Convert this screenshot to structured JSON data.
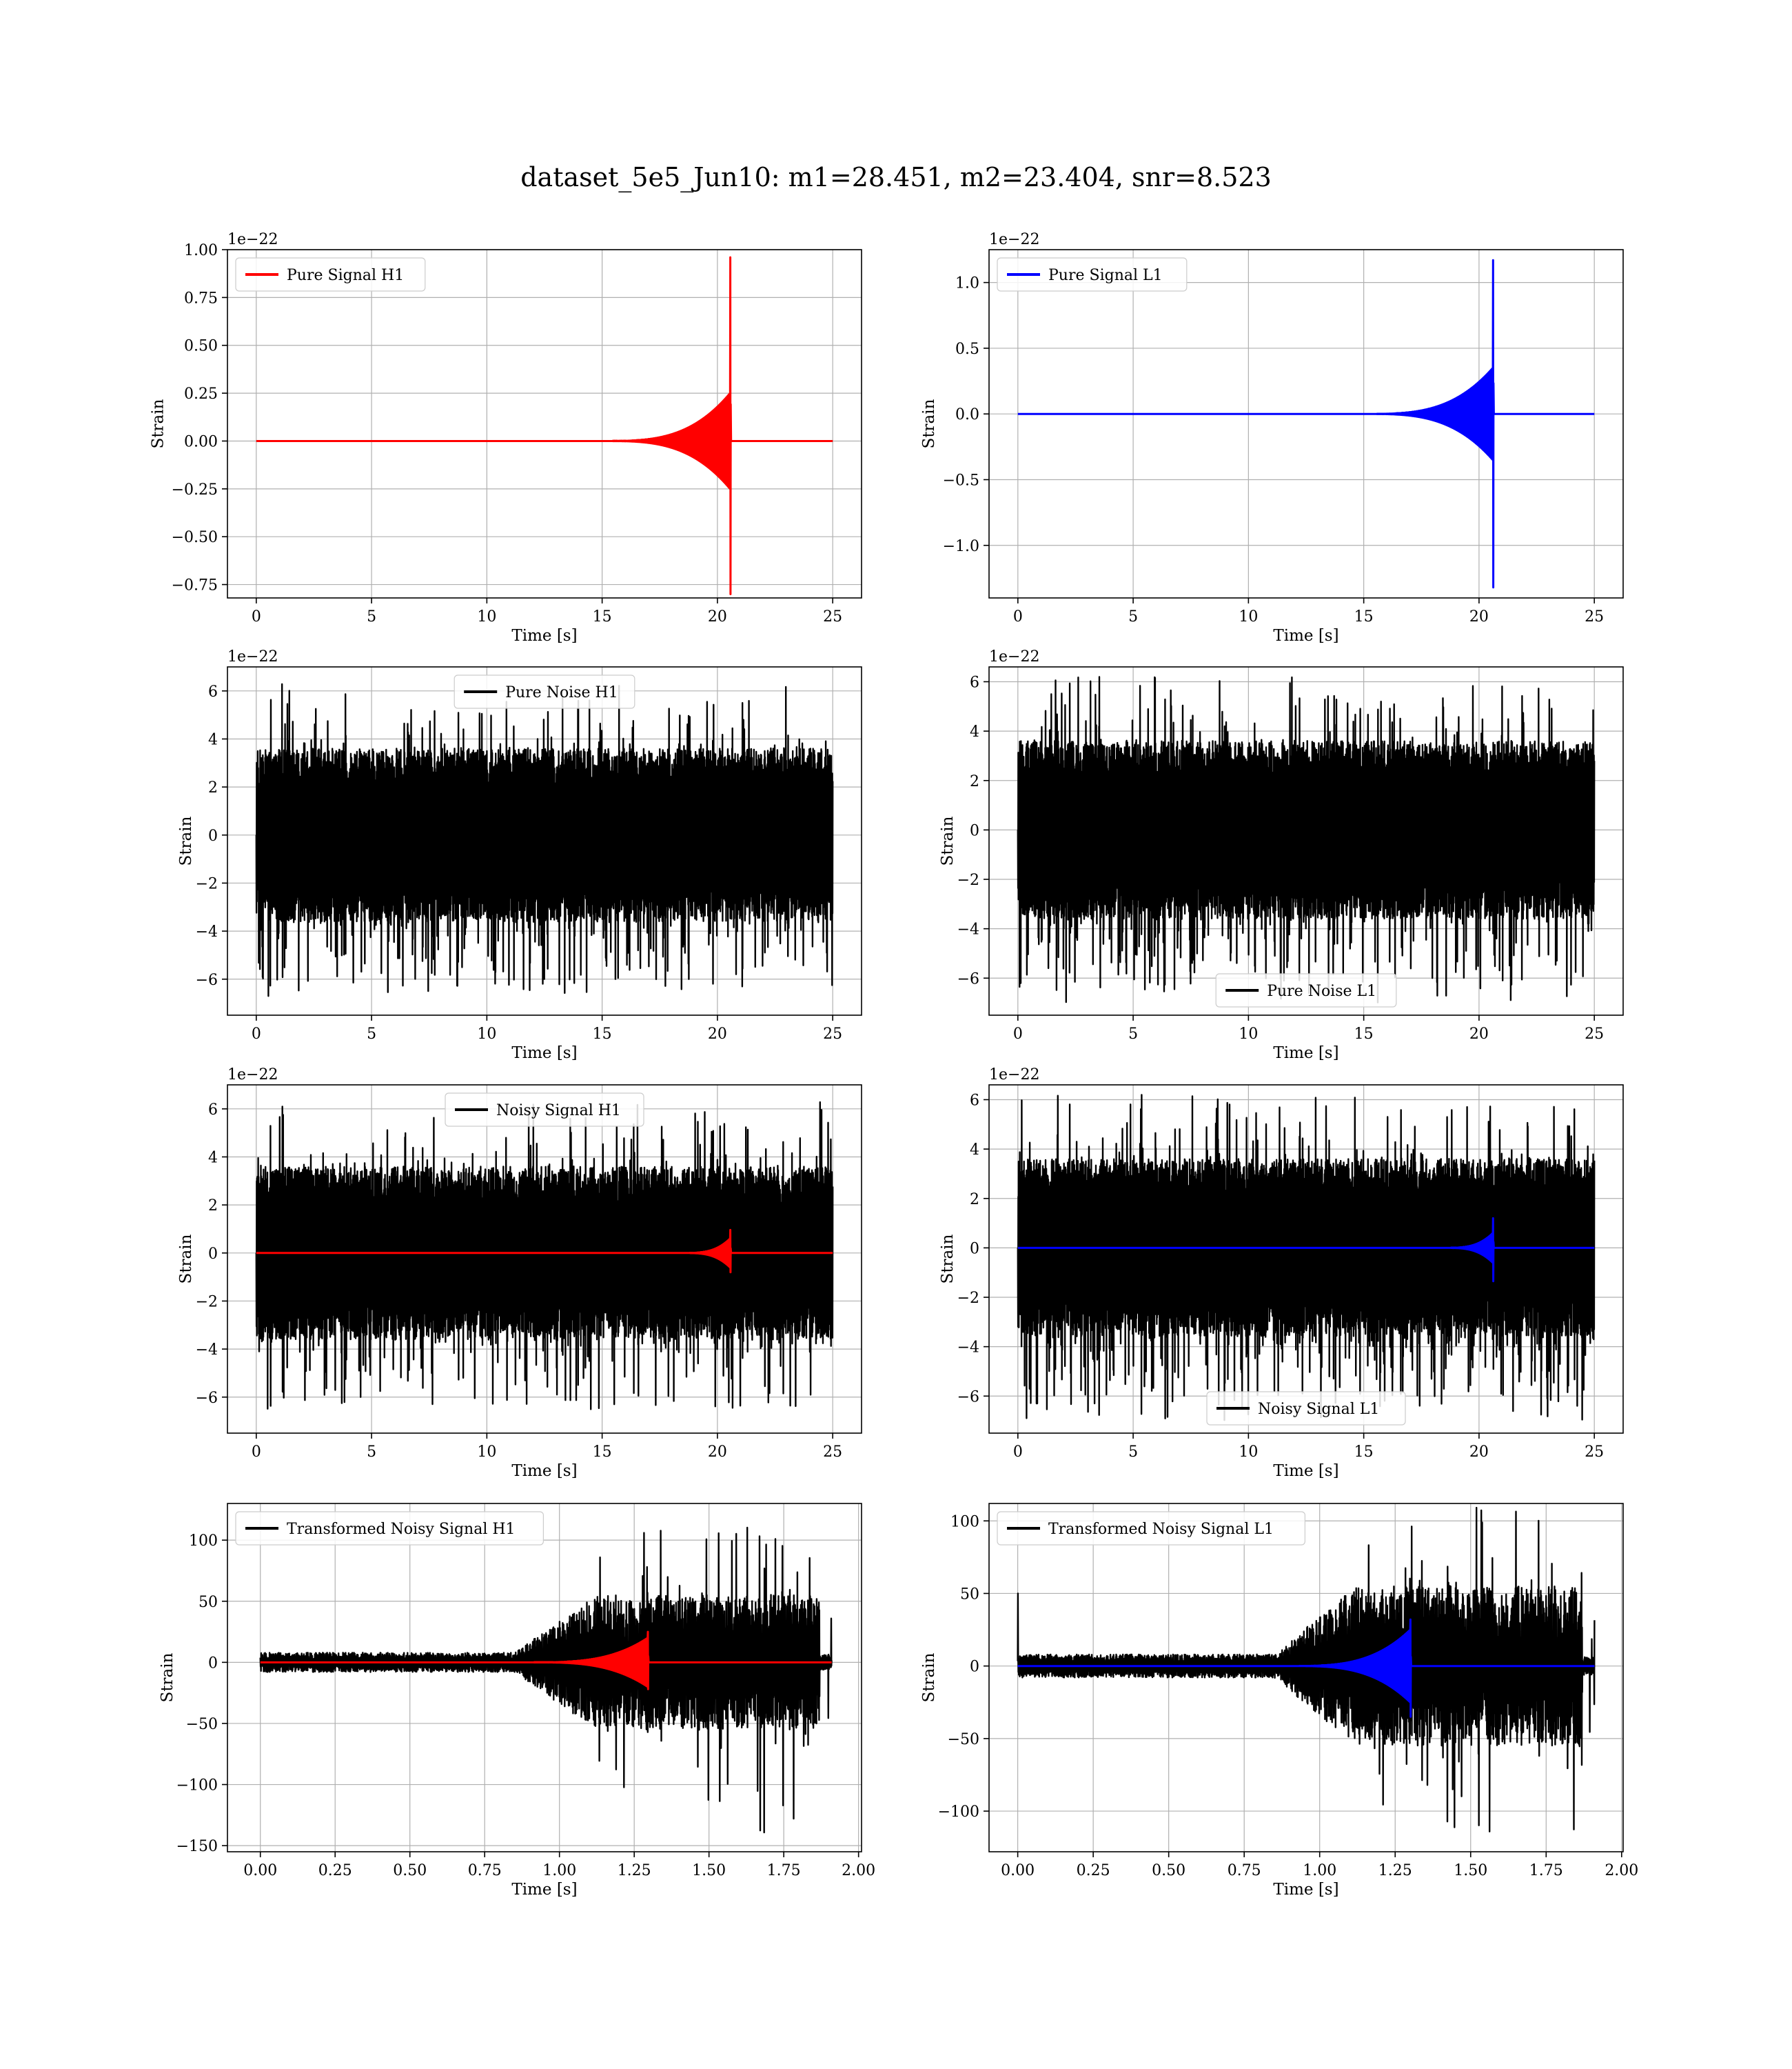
{
  "figure": {
    "suptitle": "dataset_5e5_Jun10: m1=28.451, m2=23.404, snr=8.523"
  },
  "colors": {
    "h1_signal": "#ff0000",
    "l1_signal": "#0000ff",
    "noise": "#000000",
    "grid": "#b0b0b0"
  },
  "chart_data": [
    {
      "type": "line",
      "id": "pure-signal-h1",
      "xlabel": "Time [s]",
      "ylabel": "Strain",
      "offset_label": "1e−22",
      "xlim": [
        -1.25,
        26.25
      ],
      "ylim": [
        -0.82,
        1.0
      ],
      "xticks": [
        0,
        5,
        10,
        15,
        20,
        25
      ],
      "xtick_labels": [
        "0",
        "5",
        "10",
        "15",
        "20",
        "25"
      ],
      "yticks": [
        -0.75,
        -0.5,
        -0.25,
        0.0,
        0.25,
        0.5,
        0.75,
        1.0
      ],
      "ytick_labels": [
        "−0.75",
        "−0.50",
        "−0.25",
        "0.00",
        "0.25",
        "0.50",
        "0.75",
        "1.00"
      ],
      "grid": true,
      "legend": {
        "position": "upper-left"
      },
      "series": [
        {
          "name": "Pure Signal H1",
          "color": "#ff0000",
          "kind": "chirp",
          "x_range": [
            0,
            25
          ],
          "t_merge": 20.55,
          "t_onset": 15.0,
          "pre_merger_amplitude": [
            -0.25,
            0.25
          ],
          "peak": 0.96,
          "trough": -0.8
        }
      ]
    },
    {
      "type": "line",
      "id": "pure-signal-l1",
      "xlabel": "Time [s]",
      "ylabel": "Strain",
      "offset_label": "1e−22",
      "xlim": [
        -1.25,
        26.25
      ],
      "ylim": [
        -1.4,
        1.25
      ],
      "xticks": [
        0,
        5,
        10,
        15,
        20,
        25
      ],
      "xtick_labels": [
        "0",
        "5",
        "10",
        "15",
        "20",
        "25"
      ],
      "yticks": [
        -1.0,
        -0.5,
        0.0,
        0.5,
        1.0
      ],
      "ytick_labels": [
        "−1.0",
        "−0.5",
        "0.0",
        "0.5",
        "1.0"
      ],
      "grid": true,
      "legend": {
        "position": "upper-left"
      },
      "series": [
        {
          "name": "Pure Signal L1",
          "color": "#0000ff",
          "kind": "chirp",
          "x_range": [
            0,
            25
          ],
          "t_merge": 20.6,
          "t_onset": 15.0,
          "pre_merger_amplitude": [
            -0.35,
            0.35
          ],
          "peak": 1.17,
          "trough": -1.32
        }
      ]
    },
    {
      "type": "line",
      "id": "pure-noise-h1",
      "xlabel": "Time [s]",
      "ylabel": "Strain",
      "offset_label": "1e−22",
      "xlim": [
        -1.25,
        26.25
      ],
      "ylim": [
        -7.5,
        7.0
      ],
      "xticks": [
        0,
        5,
        10,
        15,
        20,
        25
      ],
      "xtick_labels": [
        "0",
        "5",
        "10",
        "15",
        "20",
        "25"
      ],
      "yticks": [
        -6,
        -4,
        -2,
        0,
        2,
        4,
        6
      ],
      "ytick_labels": [
        "−6",
        "−4",
        "−2",
        "0",
        "2",
        "4",
        "6"
      ],
      "grid": true,
      "legend": {
        "position": "upper-center"
      },
      "series": [
        {
          "name": "Pure Noise H1",
          "color": "#000000",
          "kind": "noise",
          "x_range": [
            0,
            25
          ],
          "band": [
            -3.6,
            3.6
          ],
          "max": 6.3,
          "min": -6.8
        }
      ]
    },
    {
      "type": "line",
      "id": "pure-noise-l1",
      "xlabel": "Time [s]",
      "ylabel": "Strain",
      "offset_label": "1e−22",
      "xlim": [
        -1.25,
        26.25
      ],
      "ylim": [
        -7.5,
        6.6
      ],
      "xticks": [
        0,
        5,
        10,
        15,
        20,
        25
      ],
      "xtick_labels": [
        "0",
        "5",
        "10",
        "15",
        "20",
        "25"
      ],
      "yticks": [
        -6,
        -4,
        -2,
        0,
        2,
        4,
        6
      ],
      "ytick_labels": [
        "−6",
        "−4",
        "−2",
        "0",
        "2",
        "4",
        "6"
      ],
      "grid": true,
      "legend": {
        "position": "lower-center"
      },
      "series": [
        {
          "name": "Pure Noise L1",
          "color": "#000000",
          "kind": "noise",
          "x_range": [
            0,
            25
          ],
          "band": [
            -3.6,
            3.6
          ],
          "max": 6.2,
          "min": -7.0
        }
      ]
    },
    {
      "type": "line",
      "id": "noisy-signal-h1",
      "xlabel": "Time [s]",
      "ylabel": "Strain",
      "offset_label": "1e−22",
      "xlim": [
        -1.25,
        26.25
      ],
      "ylim": [
        -7.5,
        7.0
      ],
      "xticks": [
        0,
        5,
        10,
        15,
        20,
        25
      ],
      "xtick_labels": [
        "0",
        "5",
        "10",
        "15",
        "20",
        "25"
      ],
      "yticks": [
        -6,
        -4,
        -2,
        0,
        2,
        4,
        6
      ],
      "ytick_labels": [
        "−6",
        "−4",
        "−2",
        "0",
        "2",
        "4",
        "6"
      ],
      "grid": true,
      "legend": {
        "position": "upper-center"
      },
      "series": [
        {
          "name": "Noisy Signal H1",
          "color": "#000000",
          "kind": "noise",
          "x_range": [
            0,
            25
          ],
          "band": [
            -3.6,
            3.6
          ],
          "max": 6.3,
          "min": -6.8
        },
        {
          "color": "#ff0000",
          "kind": "chirp",
          "x_range": [
            0,
            25
          ],
          "t_merge": 20.55,
          "t_onset": 18.5,
          "pre_merger_amplitude": [
            -0.6,
            0.6
          ],
          "peak": 0.96,
          "trough": -0.8
        }
      ]
    },
    {
      "type": "line",
      "id": "noisy-signal-l1",
      "xlabel": "Time [s]",
      "ylabel": "Strain",
      "offset_label": "1e−22",
      "xlim": [
        -1.25,
        26.25
      ],
      "ylim": [
        -7.5,
        6.6
      ],
      "xticks": [
        0,
        5,
        10,
        15,
        20,
        25
      ],
      "xtick_labels": [
        "0",
        "5",
        "10",
        "15",
        "20",
        "25"
      ],
      "yticks": [
        -6,
        -4,
        -2,
        0,
        2,
        4,
        6
      ],
      "ytick_labels": [
        "−6",
        "−4",
        "−2",
        "0",
        "2",
        "4",
        "6"
      ],
      "grid": true,
      "legend": {
        "position": "lower-center"
      },
      "series": [
        {
          "name": "Noisy Signal L1",
          "color": "#000000",
          "kind": "noise",
          "x_range": [
            0,
            25
          ],
          "band": [
            -3.6,
            3.6
          ],
          "max": 6.2,
          "min": -7.0
        },
        {
          "color": "#0000ff",
          "kind": "chirp",
          "x_range": [
            0,
            25
          ],
          "t_merge": 20.6,
          "t_onset": 18.5,
          "pre_merger_amplitude": [
            -0.6,
            0.6
          ],
          "peak": 1.2,
          "trough": -1.35
        }
      ]
    },
    {
      "type": "line",
      "id": "transformed-noisy-signal-h1",
      "xlabel": "Time [s]",
      "ylabel": "Strain",
      "offset_label": "",
      "xlim": [
        -0.11,
        2.01
      ],
      "ylim": [
        -155,
        130
      ],
      "xticks": [
        0.0,
        0.25,
        0.5,
        0.75,
        1.0,
        1.25,
        1.5,
        1.75,
        2.0
      ],
      "xtick_labels": [
        "0.00",
        "0.25",
        "0.50",
        "0.75",
        "1.00",
        "1.25",
        "1.50",
        "1.75",
        "2.00"
      ],
      "yticks": [
        -150,
        -100,
        -50,
        0,
        50,
        100
      ],
      "ytick_labels": [
        "−150",
        "−100",
        "−50",
        "0",
        "50",
        "100"
      ],
      "grid": true,
      "legend": {
        "position": "upper-left"
      },
      "series": [
        {
          "name": "Transformed Noisy Signal H1",
          "color": "#000000",
          "kind": "whitened",
          "x_range": [
            0,
            1.91
          ],
          "early_band": [
            -8,
            8
          ],
          "late_band": [
            -55,
            55
          ],
          "rise_start": 0.85,
          "rise_end": 1.12,
          "max": 120,
          "min": -140
        },
        {
          "color": "#ff0000",
          "kind": "chirp",
          "x_range": [
            0,
            1.91
          ],
          "t_merge": 1.295,
          "t_onset": 0.9,
          "pre_merger_amplitude": [
            -20,
            20
          ],
          "peak": 25,
          "trough": -22
        }
      ]
    },
    {
      "type": "line",
      "id": "transformed-noisy-signal-l1",
      "xlabel": "Time [s]",
      "ylabel": "Strain",
      "offset_label": "",
      "xlim": [
        -0.095,
        2.005
      ],
      "ylim": [
        -128,
        112
      ],
      "xticks": [
        0.0,
        0.25,
        0.5,
        0.75,
        1.0,
        1.25,
        1.5,
        1.75,
        2.0
      ],
      "xtick_labels": [
        "0.00",
        "0.25",
        "0.50",
        "0.75",
        "1.00",
        "1.25",
        "1.50",
        "1.75",
        "2.00"
      ],
      "yticks": [
        -100,
        -50,
        0,
        50,
        100
      ],
      "ytick_labels": [
        "−100",
        "−50",
        "0",
        "50",
        "100"
      ],
      "grid": true,
      "legend": {
        "position": "upper-left"
      },
      "series": [
        {
          "name": "Transformed Noisy Signal L1",
          "color": "#000000",
          "kind": "whitened",
          "x_range": [
            0,
            1.91
          ],
          "early_band": [
            -8,
            8
          ],
          "late_band": [
            -55,
            55
          ],
          "rise_start": 0.85,
          "rise_end": 1.12,
          "max": 110,
          "min": -120,
          "start_spike": 50
        },
        {
          "color": "#0000ff",
          "kind": "chirp",
          "x_range": [
            0,
            1.91
          ],
          "t_merge": 1.3,
          "t_onset": 0.9,
          "pre_merger_amplitude": [
            -25,
            25
          ],
          "peak": 32,
          "trough": -35
        }
      ]
    }
  ]
}
